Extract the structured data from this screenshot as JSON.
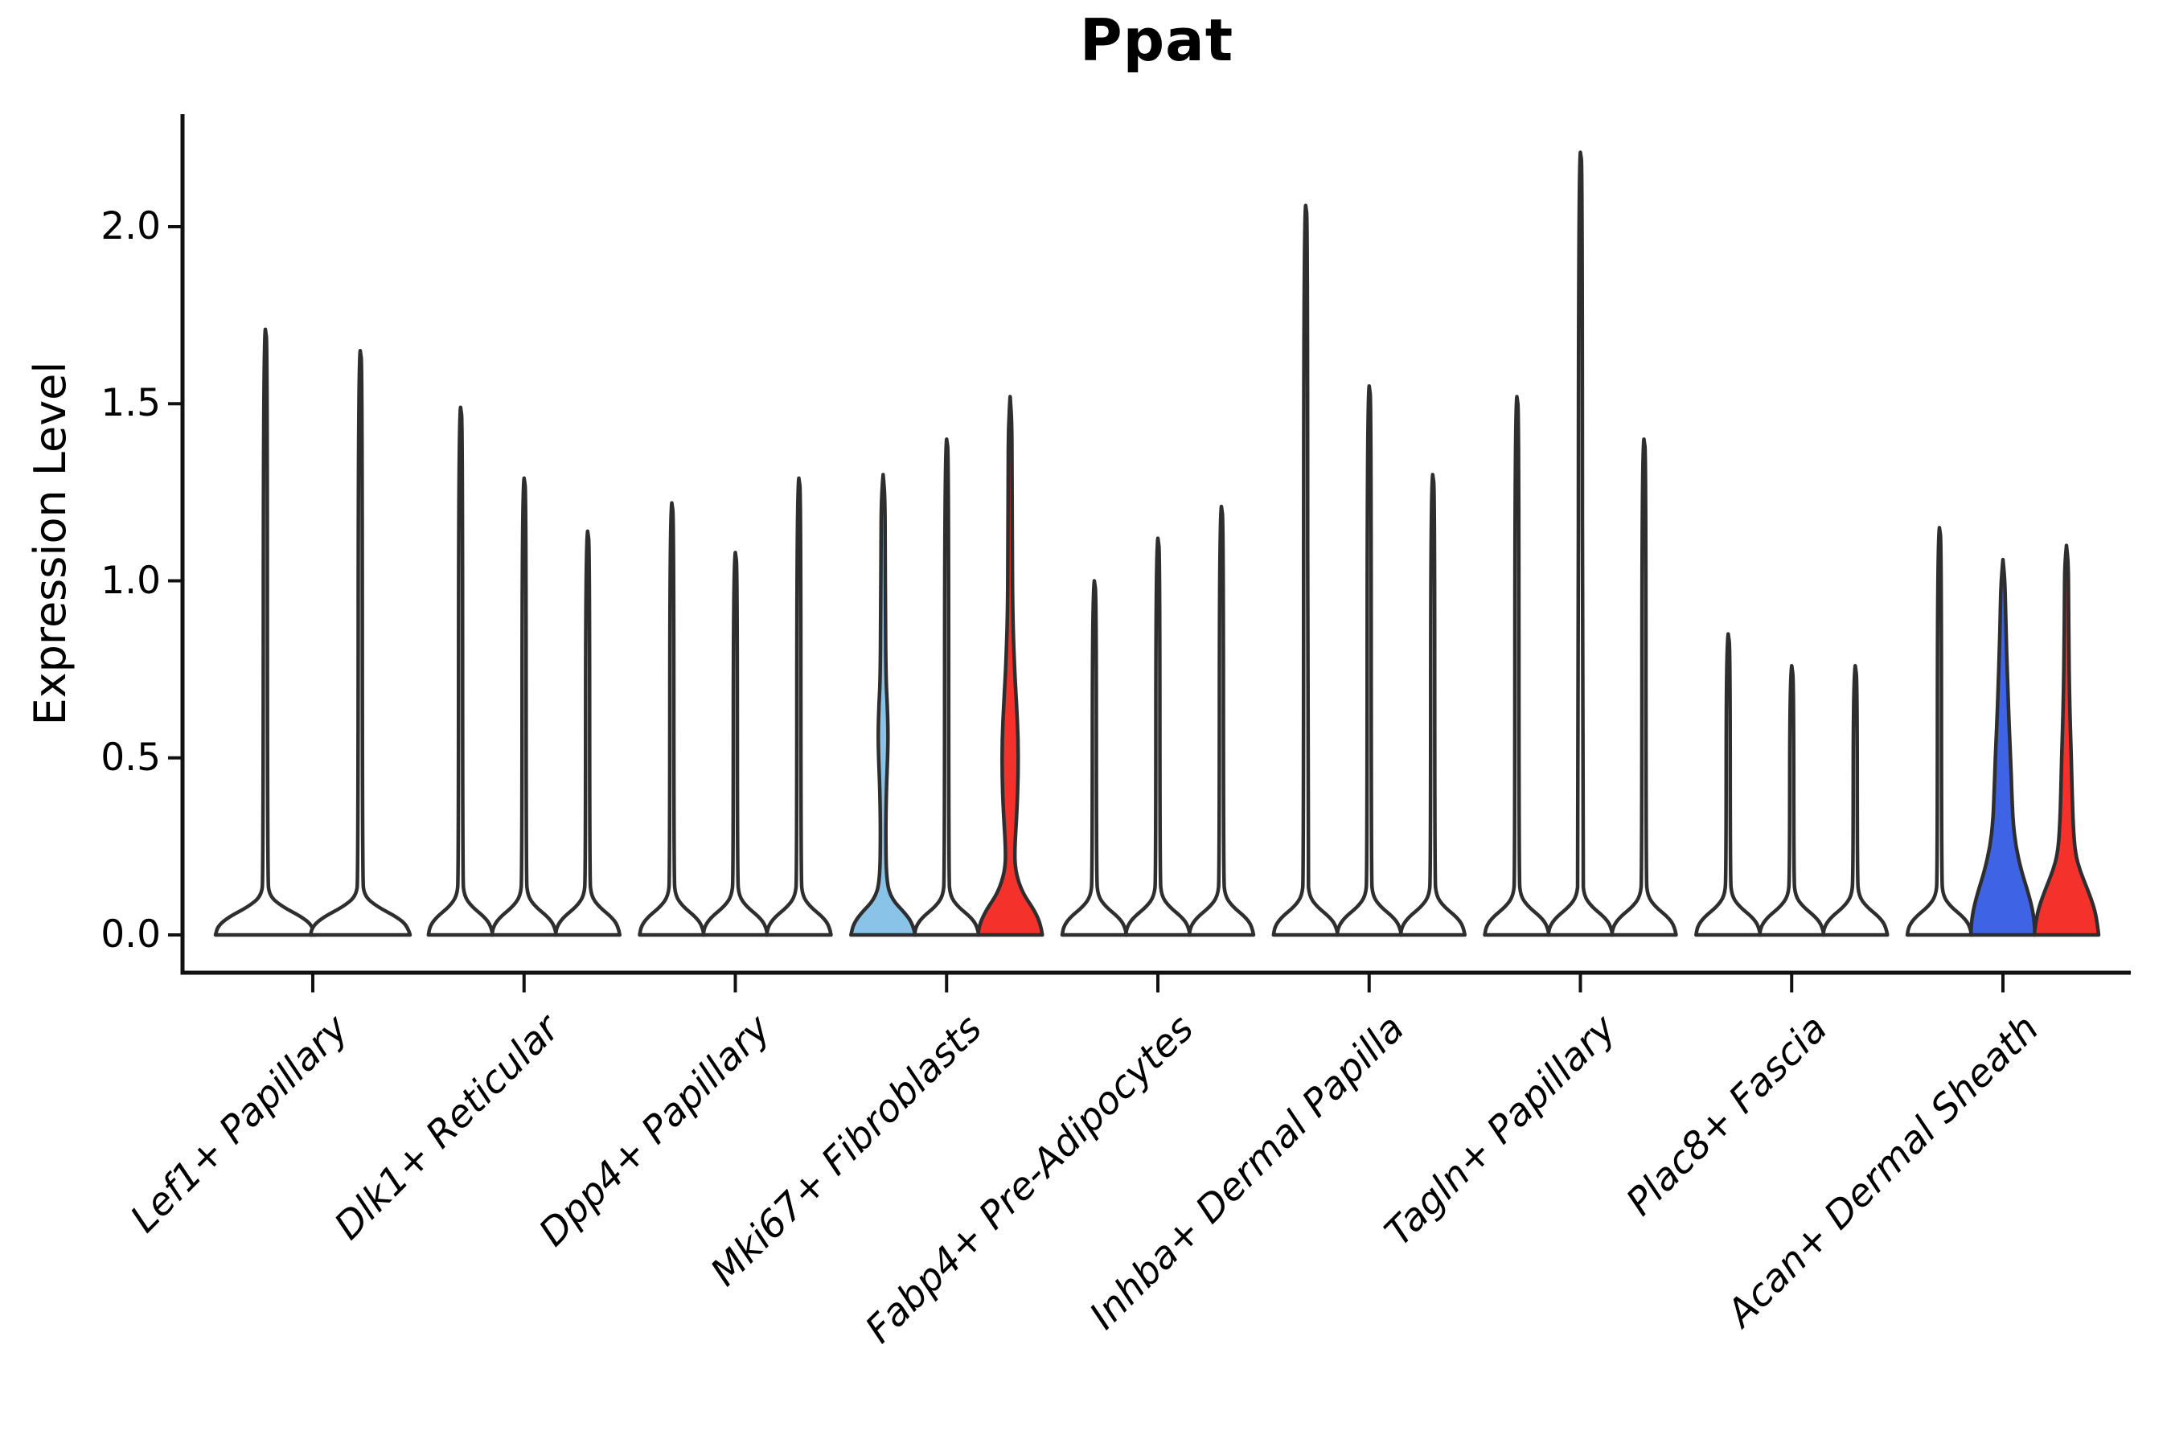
{
  "chart_data": {
    "type": "violin",
    "title": "Ppat",
    "ylabel": "Expression Level",
    "yticks": [
      0.0,
      0.5,
      1.0,
      1.5,
      2.0
    ],
    "ylim": [
      -0.11,
      2.32
    ],
    "grid": false,
    "legend": "none",
    "categories": [
      "Lef1+ Papillary",
      "Dlk1+ Reticular",
      "Dpp4+ Papillary",
      "Mki67+ Fibroblasts",
      "Fabp4+ Pre-Adipocytes",
      "Inhba+ Dermal Papilla",
      "Tagln+ Papillary",
      "Plac8+ Fascia",
      "Acan+ Dermal Sheath"
    ],
    "colors": {
      "outline": "#2e2e2e",
      "axis": "#111111",
      "white": "#ffffff",
      "skyblue": "#8AC3E8",
      "blue": "#3E63E5",
      "red": "#F5312C"
    },
    "profiles": {
      "thin": [
        [
          0,
          40
        ],
        [
          0.025,
          38
        ],
        [
          0.05,
          30
        ],
        [
          0.08,
          14
        ],
        [
          0.11,
          4.5
        ],
        [
          0.16,
          2.6
        ]
      ],
      "thin_wide": [
        [
          0,
          62
        ],
        [
          0.025,
          59
        ],
        [
          0.05,
          46
        ],
        [
          0.08,
          21
        ],
        [
          0.11,
          5.0
        ],
        [
          0.16,
          2.7
        ]
      ]
    },
    "groups": [
      {
        "label": "Lef1+ Papillary",
        "violins": [
          {
            "offset": -59,
            "fill": "white",
            "shape": "thin_wide",
            "max": 1.71
          },
          {
            "offset": 59,
            "fill": "white",
            "shape": "thin_wide",
            "max": 1.65
          }
        ]
      },
      {
        "label": "Dlk1+ Reticular",
        "violins": [
          {
            "offset": -79,
            "fill": "white",
            "shape": "thin",
            "max": 1.49
          },
          {
            "offset": 0,
            "fill": "white",
            "shape": "thin",
            "max": 1.29
          },
          {
            "offset": 79,
            "fill": "white",
            "shape": "thin",
            "max": 1.14
          }
        ]
      },
      {
        "label": "Dpp4+ Papillary",
        "violins": [
          {
            "offset": -79,
            "fill": "white",
            "shape": "thin",
            "max": 1.22
          },
          {
            "offset": 0,
            "fill": "white",
            "shape": "thin",
            "max": 1.08
          },
          {
            "offset": 79,
            "fill": "white",
            "shape": "thin",
            "max": 1.29
          }
        ]
      },
      {
        "label": "Mki67+ Fibroblasts",
        "violins": [
          {
            "offset": -79,
            "fill": "skyblue",
            "max": 1.3,
            "profile": [
              [
                0,
                40
              ],
              [
                0.03,
                37
              ],
              [
                0.06,
                28
              ],
              [
                0.1,
                11
              ],
              [
                0.15,
                4
              ],
              [
                0.3,
                3.2
              ],
              [
                0.42,
                4.2
              ],
              [
                0.5,
                5.6
              ],
              [
                0.57,
                6.2
              ],
              [
                0.65,
                5.2
              ],
              [
                0.72,
                3.6
              ],
              [
                0.9,
                2.9
              ],
              [
                1.1,
                2.6
              ],
              [
                1.24,
                2.2
              ],
              [
                1.3,
                0
              ]
            ]
          },
          {
            "offset": 0,
            "fill": "white",
            "shape": "thin",
            "max": 1.4
          },
          {
            "offset": 79,
            "fill": "red",
            "max": 1.52,
            "profile": [
              [
                0,
                40
              ],
              [
                0.03,
                38
              ],
              [
                0.07,
                30
              ],
              [
                0.12,
                15
              ],
              [
                0.18,
                6.5
              ],
              [
                0.24,
                5.5
              ],
              [
                0.35,
                8.5
              ],
              [
                0.45,
                10
              ],
              [
                0.55,
                10
              ],
              [
                0.65,
                8
              ],
              [
                0.75,
                5.5
              ],
              [
                0.9,
                3.2
              ],
              [
                1.1,
                2.7
              ],
              [
                1.3,
                2.4
              ],
              [
                1.45,
                2.1
              ],
              [
                1.52,
                0
              ]
            ]
          }
        ]
      },
      {
        "label": "Fabp4+ Pre-Adipocytes",
        "violins": [
          {
            "offset": -79,
            "fill": "white",
            "shape": "thin",
            "max": 1.0
          },
          {
            "offset": 0,
            "fill": "white",
            "shape": "thin",
            "max": 1.12
          },
          {
            "offset": 79,
            "fill": "white",
            "shape": "thin",
            "max": 1.21
          }
        ]
      },
      {
        "label": "Inhba+ Dermal Papilla",
        "violins": [
          {
            "offset": -79,
            "fill": "white",
            "shape": "thin",
            "max": 2.06
          },
          {
            "offset": 0,
            "fill": "white",
            "shape": "thin",
            "max": 1.55
          },
          {
            "offset": 79,
            "fill": "white",
            "shape": "thin",
            "max": 1.3
          }
        ]
      },
      {
        "label": "Tagln+ Papillary",
        "violins": [
          {
            "offset": -79,
            "fill": "white",
            "shape": "thin",
            "max": 1.52
          },
          {
            "offset": 0,
            "fill": "white",
            "shape": "thin",
            "max": 2.21
          },
          {
            "offset": 79,
            "fill": "white",
            "shape": "thin",
            "max": 1.4
          }
        ]
      },
      {
        "label": "Plac8+ Fascia",
        "violins": [
          {
            "offset": -79,
            "fill": "white",
            "shape": "thin",
            "max": 0.85
          },
          {
            "offset": 0,
            "fill": "white",
            "shape": "thin",
            "max": 0.76
          },
          {
            "offset": 79,
            "fill": "white",
            "shape": "thin",
            "max": 0.76
          }
        ]
      },
      {
        "label": "Acan+ Dermal Sheath",
        "violins": [
          {
            "offset": -79,
            "fill": "white",
            "shape": "thin",
            "max": 1.15
          },
          {
            "offset": 0,
            "fill": "blue",
            "max": 1.06,
            "profile": [
              [
                0,
                40
              ],
              [
                0.04,
                39
              ],
              [
                0.08,
                36
              ],
              [
                0.13,
                30
              ],
              [
                0.18,
                23
              ],
              [
                0.25,
                16
              ],
              [
                0.32,
                12.5
              ],
              [
                0.4,
                11
              ],
              [
                0.5,
                9.5
              ],
              [
                0.6,
                7.5
              ],
              [
                0.7,
                6
              ],
              [
                0.8,
                4.5
              ],
              [
                0.9,
                3.4
              ],
              [
                1.0,
                2.4
              ],
              [
                1.06,
                0
              ]
            ]
          },
          {
            "offset": 79,
            "fill": "red",
            "max": 1.1,
            "profile": [
              [
                0,
                40
              ],
              [
                0.04,
                38
              ],
              [
                0.08,
                34
              ],
              [
                0.13,
                26
              ],
              [
                0.18,
                17
              ],
              [
                0.23,
                11
              ],
              [
                0.3,
                8.5
              ],
              [
                0.4,
                7
              ],
              [
                0.5,
                6
              ],
              [
                0.6,
                4.6
              ],
              [
                0.7,
                3.6
              ],
              [
                0.8,
                3
              ],
              [
                0.95,
                2.5
              ],
              [
                1.05,
                2.2
              ],
              [
                1.1,
                0
              ]
            ]
          }
        ]
      }
    ]
  }
}
